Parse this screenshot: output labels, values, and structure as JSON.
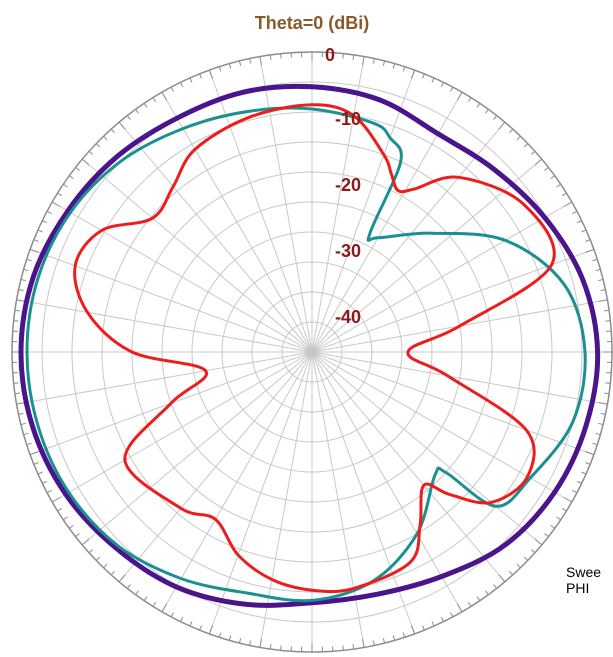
{
  "chart_data": {
    "type": "polar",
    "title": "Theta=0 (dBi)",
    "radial_labels": [
      "0",
      "-10",
      "-20",
      "-30",
      "-40"
    ],
    "radial_range": [
      -50,
      0
    ],
    "angle_unit": "deg",
    "angle_zero": "top",
    "angle_direction": "clockwise",
    "grid": true,
    "sweep_label": "Swee",
    "sweep_value": "PHI",
    "colors": {
      "title": "#8b5a2b",
      "radial_label": "#8b1a1a",
      "grid": "#c8c8c8",
      "outer_circle": "#8c8c8c"
    },
    "series": [
      {
        "color": "#4a148c",
        "angles": [
          0,
          15,
          30,
          45,
          60,
          75,
          90,
          105,
          120,
          135,
          150,
          165,
          180,
          195,
          210,
          225,
          240,
          255,
          270,
          285,
          300,
          315,
          330,
          345,
          360
        ],
        "values": [
          -5.8,
          -6.5,
          -8,
          -7,
          -5.2,
          -3.3,
          -2.4,
          -2.7,
          -3.3,
          -4.5,
          -6.8,
          -8.2,
          -8.2,
          -6.5,
          -4.8,
          -3.8,
          -2.6,
          -1.8,
          -1.5,
          -1.9,
          -3,
          -4,
          -5,
          -5.2,
          -5.8
        ]
      },
      {
        "color": "#1a9090",
        "angles": [
          0,
          15,
          20,
          25,
          26,
          30,
          45,
          60,
          75,
          90,
          105,
          120,
          130,
          132,
          135,
          150,
          165,
          180,
          195,
          210,
          225,
          240,
          255,
          270,
          285,
          300,
          315,
          330,
          345,
          360
        ],
        "values": [
          -9.5,
          -10.5,
          -12,
          -15,
          -28,
          -28,
          -22,
          -12.8,
          -6.5,
          -4.5,
          -5,
          -8,
          -10,
          -20,
          -21,
          -15,
          -10.5,
          -8.6,
          -8.4,
          -6.4,
          -4.3,
          -3.2,
          -2.7,
          -2.5,
          -2.7,
          -3.5,
          -5,
          -7,
          -8.5,
          -9.5
        ]
      },
      {
        "color": "#ee1c1c",
        "angles": [
          0,
          10,
          20,
          24,
          28,
          32,
          40,
          55,
          70,
          80,
          90,
          100,
          110,
          120,
          130,
          136,
          140,
          148,
          155,
          170,
          180,
          190,
          200,
          210,
          220,
          240,
          250,
          260,
          270,
          280,
          290,
          300,
          310,
          320,
          330,
          345,
          360
        ],
        "values": [
          -8.8,
          -10,
          -15,
          -17.5,
          -19.5,
          -18,
          -12,
          -7,
          -7.5,
          -25,
          -34,
          -27,
          -12,
          -8.5,
          -11,
          -17,
          -21,
          -16,
          -11.3,
          -10,
          -10.3,
          -11.5,
          -14,
          -17.8,
          -16,
          -14,
          -25,
          -32,
          -20,
          -12,
          -8,
          -9.5,
          -15.3,
          -14,
          -11,
          -9.5,
          -8.8
        ]
      }
    ]
  }
}
